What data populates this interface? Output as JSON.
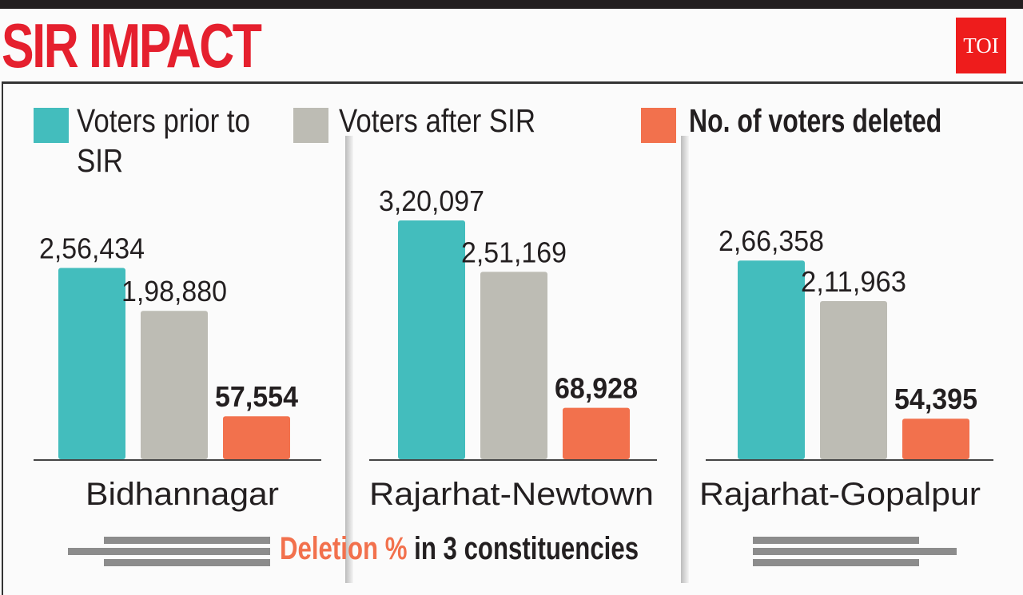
{
  "title": "SIR IMPACT",
  "logo": "TOI",
  "footer": {
    "highlight": "Deletion %",
    "rest": " in 3 constituencies"
  },
  "colors": {
    "prior": "#43bdbd",
    "after": "#bdbcb4",
    "deleted": "#f2714d",
    "title": "#e5202e"
  },
  "chart_data": {
    "type": "bar",
    "title": "SIR IMPACT",
    "categories": [
      "Bidhannagar",
      "Rajarhat-Newtown",
      "Rajarhat-Gopalpur"
    ],
    "legend_position": "top",
    "grid": false,
    "series": [
      {
        "name": "Voters prior to SIR",
        "values": [
          256434,
          320097,
          266358
        ],
        "labels": [
          "2,56,434",
          "3,20,097",
          "2,66,358"
        ]
      },
      {
        "name": "Voters after SIR",
        "values": [
          198880,
          251169,
          211963
        ],
        "labels": [
          "1,98,880",
          "2,51,169",
          "2,11,963"
        ]
      },
      {
        "name": "No. of voters deleted",
        "values": [
          57554,
          68928,
          54395
        ],
        "labels": [
          "57,554",
          "68,928",
          "54,395"
        ]
      }
    ]
  }
}
